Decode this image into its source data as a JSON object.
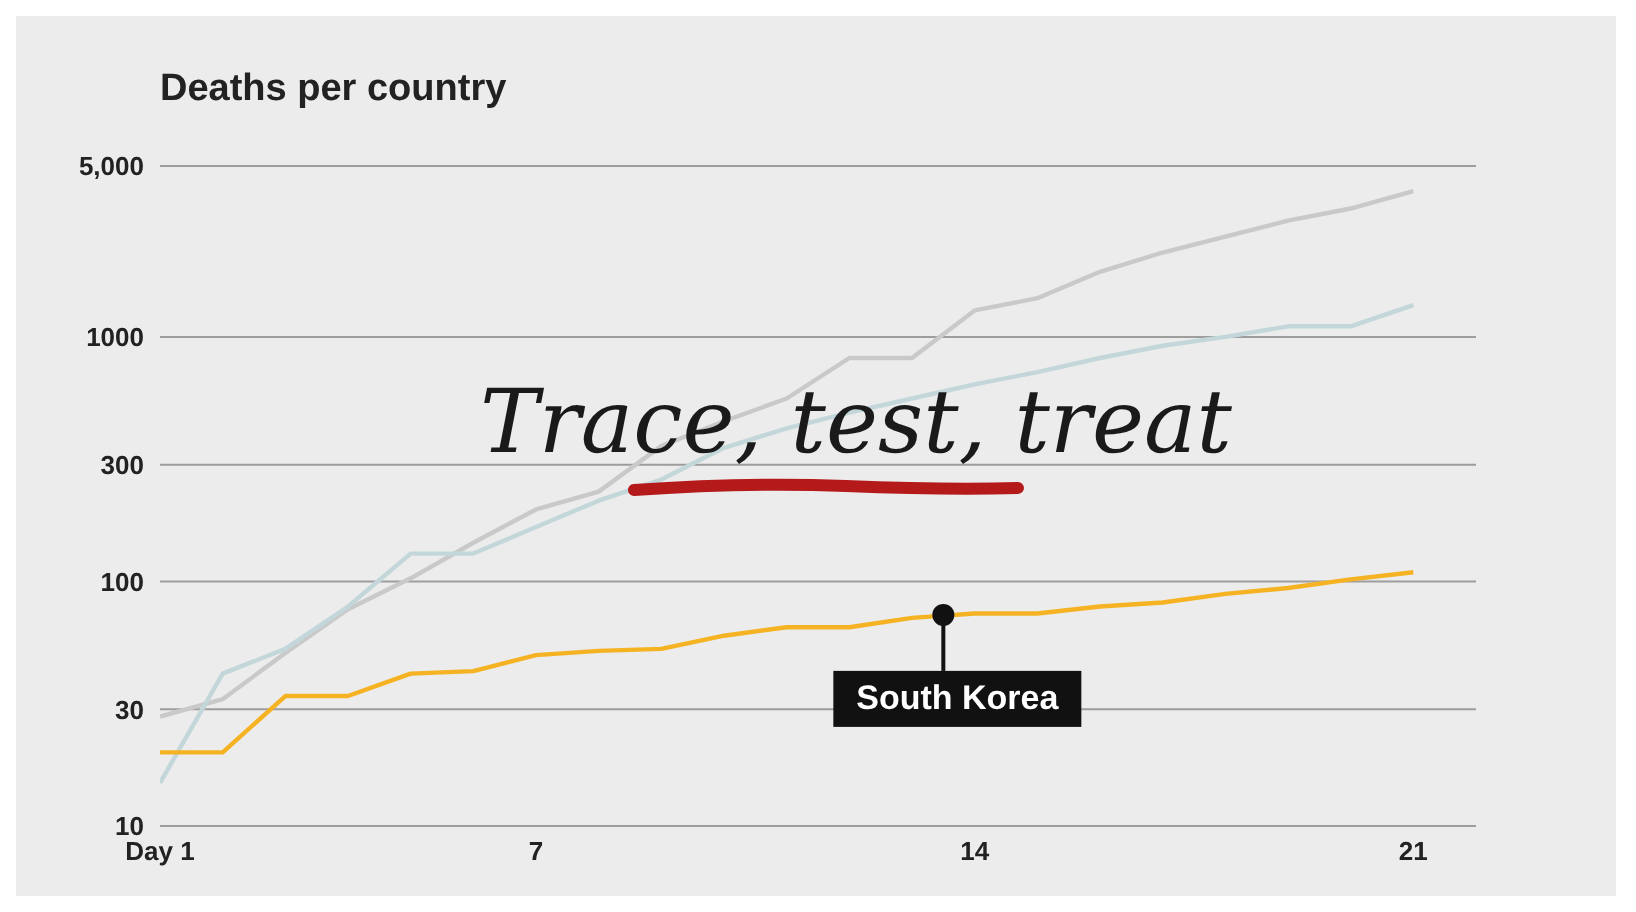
{
  "chart_data": {
    "type": "line",
    "title": "Deaths per country",
    "x": [
      1,
      2,
      3,
      4,
      5,
      6,
      7,
      8,
      9,
      10,
      11,
      12,
      13,
      14,
      15,
      16,
      17,
      18,
      19,
      20,
      21
    ],
    "series": [
      {
        "color": "#c9c9c9",
        "values": [
          28,
          33,
          51,
          77,
          103,
          144,
          197,
          233,
          358,
          452,
          560,
          820,
          820,
          1283,
          1440,
          1846,
          2214,
          2570,
          2987,
          3350,
          3950
        ]
      },
      {
        "color": "#c3d7da",
        "values": [
          15,
          42,
          53,
          79,
          130,
          130,
          167,
          214,
          261,
          352,
          423,
          490,
          560,
          640,
          718,
          820,
          920,
          1000,
          1105,
          1105,
          1350
        ]
      },
      {
        "color": "#f5b324",
        "values": [
          20,
          20,
          34,
          34,
          42,
          43,
          50,
          52,
          53,
          60,
          65,
          65,
          71,
          74,
          74,
          79,
          82,
          89,
          94,
          102,
          109
        ]
      }
    ],
    "xlim": [
      1,
      22
    ],
    "xticks": [
      {
        "value": 1,
        "label": "Day 1"
      },
      7,
      14,
      21
    ],
    "ylim": [
      10,
      5000
    ],
    "yticks": [
      10,
      30,
      100,
      300,
      1000,
      {
        "value": 5000,
        "label": "5,000"
      }
    ],
    "log": true,
    "grid": "y",
    "legend": false,
    "marker": "none",
    "line_style": "solid",
    "annotations": [
      "Trace, test, treat",
      {
        "text": "South Korea",
        "x": 13.5,
        "y": 73
      }
    ]
  }
}
